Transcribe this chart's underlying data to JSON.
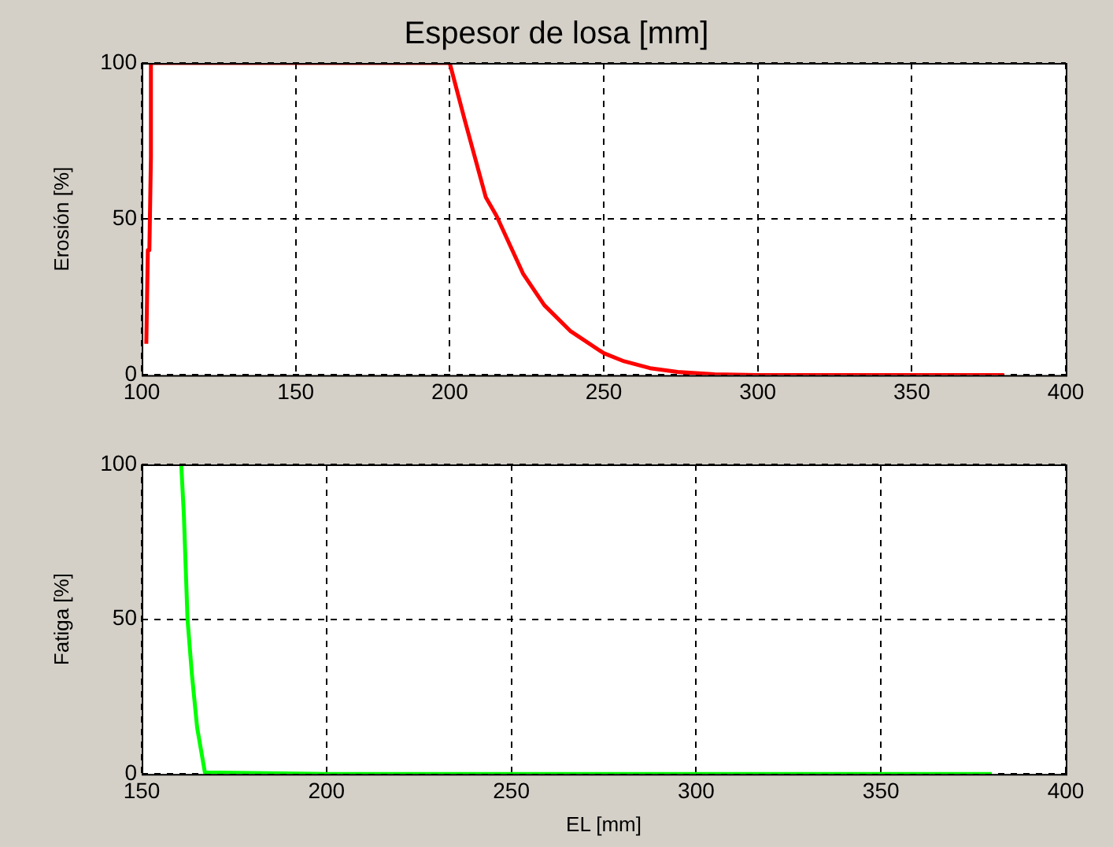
{
  "chart_data": [
    {
      "type": "line",
      "title": "Espesor de losa [mm]",
      "ylabel": "Erosión [%]",
      "xlim": [
        100,
        400
      ],
      "xticks": [
        100,
        150,
        200,
        250,
        300,
        350,
        400
      ],
      "ylim": [
        0,
        100
      ],
      "yticks": [
        0,
        50,
        100
      ],
      "grid": true,
      "x": [
        101.5,
        102,
        102.5,
        103,
        103,
        200,
        204.8,
        211.7,
        215.2,
        223.8,
        230.7,
        239.3,
        250,
        256.6,
        265,
        274,
        286,
        300,
        350,
        380
      ],
      "series": [
        {
          "color": "#ff0000",
          "values": [
            10,
            40,
            40,
            70,
            100,
            100,
            82,
            57,
            51,
            32.5,
            22.4,
            14,
            7,
            4.4,
            2.2,
            1,
            0.2,
            0,
            0,
            0
          ]
        }
      ]
    },
    {
      "type": "line",
      "xlabel": "EL [mm]",
      "ylabel": "Fatiga [%]",
      "xlim": [
        150,
        400
      ],
      "xticks": [
        150,
        200,
        250,
        300,
        350,
        400
      ],
      "ylim": [
        0,
        100
      ],
      "yticks": [
        0,
        50,
        100
      ],
      "grid": true,
      "x": [
        160.7,
        161.4,
        162.4,
        163.6,
        165,
        167.1,
        200,
        300,
        380
      ],
      "series": [
        {
          "color": "#00ff00",
          "values": [
            100,
            84,
            50,
            32,
            15,
            0.5,
            0,
            0,
            0
          ]
        }
      ]
    }
  ]
}
